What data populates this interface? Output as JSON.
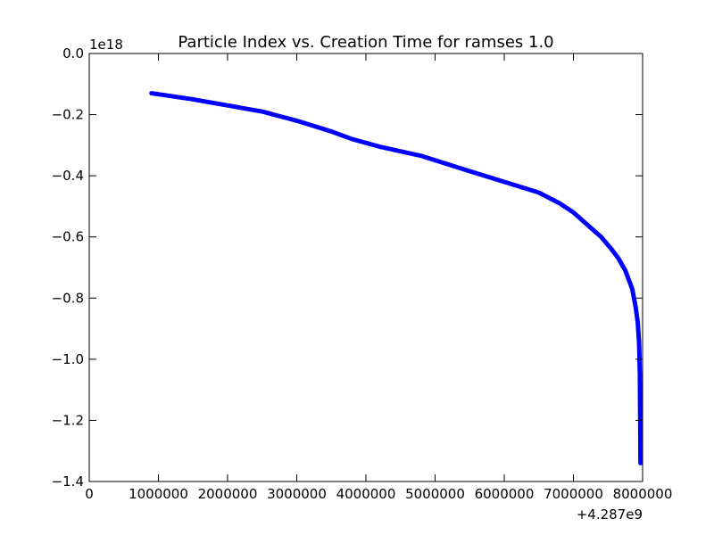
{
  "chart_data": {
    "type": "scatter",
    "title": "Particle Index vs. Creation Time for ramses 1.0",
    "xlabel": "",
    "ylabel": "",
    "x_offset_label": "+4.287e9",
    "y_scale_label": "1e18",
    "xlim": [
      0,
      8000000
    ],
    "ylim": [
      -1.4,
      0.0
    ],
    "x_ticks": [
      0,
      1000000,
      2000000,
      3000000,
      4000000,
      5000000,
      6000000,
      7000000,
      8000000
    ],
    "x_tick_labels": [
      "0",
      "1000000",
      "2000000",
      "3000000",
      "4000000",
      "5000000",
      "6000000",
      "7000000",
      "8000000"
    ],
    "y_ticks": [
      0.0,
      -0.2,
      -0.4,
      -0.6,
      -0.8,
      -1.0,
      -1.2,
      -1.4
    ],
    "y_tick_labels": [
      "0.0",
      "−0.2",
      "−0.4",
      "−0.6",
      "−0.8",
      "−1.0",
      "−1.2",
      "−1.4"
    ],
    "grid": false,
    "series": [
      {
        "color": "#0000ff",
        "x": [
          900000,
          1500000,
          2000000,
          2500000,
          3000000,
          3500000,
          3800000,
          4200000,
          4800000,
          5500000,
          6000000,
          6500000,
          6800000,
          7000000,
          7200000,
          7400000,
          7550000,
          7650000,
          7750000,
          7850000,
          7900000,
          7930000,
          7950000,
          7960000,
          7965000,
          7968000,
          7970000
        ],
        "y": [
          -0.13,
          -0.15,
          -0.17,
          -0.19,
          -0.22,
          -0.255,
          -0.28,
          -0.305,
          -0.335,
          -0.385,
          -0.42,
          -0.455,
          -0.49,
          -0.52,
          -0.56,
          -0.6,
          -0.64,
          -0.67,
          -0.71,
          -0.77,
          -0.83,
          -0.88,
          -0.95,
          -1.05,
          -1.2,
          -1.3,
          -1.34
        ]
      }
    ]
  }
}
